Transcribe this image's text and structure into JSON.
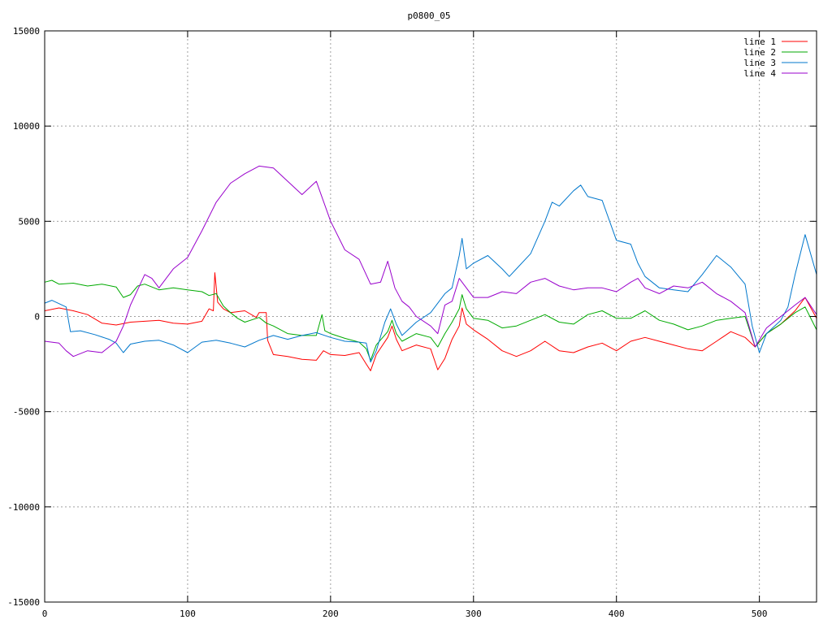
{
  "chart_data": {
    "type": "line",
    "title": "p0800_05",
    "xlabel": "",
    "ylabel": "",
    "xlim": [
      0,
      540
    ],
    "ylim": [
      -15000,
      15000
    ],
    "x_ticks": [
      0,
      100,
      200,
      300,
      400,
      500
    ],
    "y_ticks": [
      -15000,
      -10000,
      -5000,
      0,
      5000,
      10000,
      15000
    ],
    "grid": true,
    "legend_position": "top-right",
    "series": [
      {
        "name": "line 1",
        "color": "#ff0000",
        "points": [
          [
            0,
            300
          ],
          [
            10,
            450
          ],
          [
            20,
            300
          ],
          [
            30,
            100
          ],
          [
            40,
            -350
          ],
          [
            50,
            -450
          ],
          [
            60,
            -300
          ],
          [
            70,
            -250
          ],
          [
            80,
            -200
          ],
          [
            90,
            -350
          ],
          [
            100,
            -400
          ],
          [
            110,
            -250
          ],
          [
            115,
            400
          ],
          [
            118,
            300
          ],
          [
            119,
            2300
          ],
          [
            121,
            750
          ],
          [
            125,
            400
          ],
          [
            130,
            200
          ],
          [
            140,
            300
          ],
          [
            148,
            -50
          ],
          [
            150,
            200
          ],
          [
            155,
            200
          ],
          [
            156,
            -1250
          ],
          [
            160,
            -2000
          ],
          [
            170,
            -2100
          ],
          [
            180,
            -2250
          ],
          [
            190,
            -2300
          ],
          [
            195,
            -1800
          ],
          [
            200,
            -2000
          ],
          [
            210,
            -2050
          ],
          [
            220,
            -1900
          ],
          [
            225,
            -2500
          ],
          [
            228,
            -2850
          ],
          [
            232,
            -2000
          ],
          [
            240,
            -1100
          ],
          [
            243,
            -500
          ],
          [
            246,
            -1200
          ],
          [
            250,
            -1800
          ],
          [
            260,
            -1500
          ],
          [
            270,
            -1700
          ],
          [
            275,
            -2800
          ],
          [
            280,
            -2200
          ],
          [
            285,
            -1200
          ],
          [
            290,
            -500
          ],
          [
            292,
            450
          ],
          [
            295,
            -400
          ],
          [
            300,
            -700
          ],
          [
            310,
            -1200
          ],
          [
            320,
            -1800
          ],
          [
            330,
            -2100
          ],
          [
            340,
            -1800
          ],
          [
            350,
            -1300
          ],
          [
            360,
            -1800
          ],
          [
            370,
            -1900
          ],
          [
            380,
            -1600
          ],
          [
            390,
            -1400
          ],
          [
            400,
            -1800
          ],
          [
            410,
            -1300
          ],
          [
            420,
            -1100
          ],
          [
            430,
            -1300
          ],
          [
            440,
            -1500
          ],
          [
            450,
            -1700
          ],
          [
            460,
            -1800
          ],
          [
            470,
            -1300
          ],
          [
            480,
            -800
          ],
          [
            490,
            -1100
          ],
          [
            497,
            -1600
          ],
          [
            505,
            -900
          ],
          [
            515,
            -400
          ],
          [
            525,
            300
          ],
          [
            532,
            1000
          ],
          [
            540,
            -100
          ]
        ]
      },
      {
        "name": "line 2",
        "color": "#00aa00",
        "points": [
          [
            0,
            1800
          ],
          [
            5,
            1900
          ],
          [
            10,
            1700
          ],
          [
            20,
            1750
          ],
          [
            30,
            1600
          ],
          [
            40,
            1700
          ],
          [
            50,
            1550
          ],
          [
            55,
            1000
          ],
          [
            60,
            1150
          ],
          [
            65,
            1600
          ],
          [
            70,
            1700
          ],
          [
            80,
            1400
          ],
          [
            90,
            1500
          ],
          [
            100,
            1400
          ],
          [
            110,
            1300
          ],
          [
            115,
            1100
          ],
          [
            120,
            1200
          ],
          [
            125,
            550
          ],
          [
            130,
            200
          ],
          [
            135,
            -100
          ],
          [
            140,
            -300
          ],
          [
            150,
            -50
          ],
          [
            155,
            -350
          ],
          [
            160,
            -500
          ],
          [
            170,
            -900
          ],
          [
            180,
            -1000
          ],
          [
            190,
            -1000
          ],
          [
            194,
            100
          ],
          [
            196,
            -750
          ],
          [
            200,
            -900
          ],
          [
            210,
            -1150
          ],
          [
            220,
            -1350
          ],
          [
            225,
            -1700
          ],
          [
            228,
            -2300
          ],
          [
            232,
            -1500
          ],
          [
            240,
            -800
          ],
          [
            243,
            -200
          ],
          [
            246,
            -900
          ],
          [
            250,
            -1300
          ],
          [
            260,
            -900
          ],
          [
            270,
            -1100
          ],
          [
            275,
            -1600
          ],
          [
            280,
            -900
          ],
          [
            285,
            -300
          ],
          [
            290,
            400
          ],
          [
            292,
            1150
          ],
          [
            295,
            400
          ],
          [
            300,
            -100
          ],
          [
            310,
            -200
          ],
          [
            320,
            -600
          ],
          [
            330,
            -500
          ],
          [
            340,
            -200
          ],
          [
            350,
            100
          ],
          [
            360,
            -300
          ],
          [
            370,
            -400
          ],
          [
            380,
            100
          ],
          [
            390,
            300
          ],
          [
            400,
            -100
          ],
          [
            410,
            -100
          ],
          [
            420,
            300
          ],
          [
            430,
            -200
          ],
          [
            440,
            -400
          ],
          [
            450,
            -700
          ],
          [
            460,
            -500
          ],
          [
            470,
            -200
          ],
          [
            480,
            -100
          ],
          [
            490,
            0
          ],
          [
            497,
            -1600
          ],
          [
            505,
            -900
          ],
          [
            515,
            -400
          ],
          [
            525,
            200
          ],
          [
            532,
            500
          ],
          [
            540,
            -700
          ]
        ]
      },
      {
        "name": "line 3",
        "color": "#0077cc",
        "points": [
          [
            0,
            700
          ],
          [
            5,
            850
          ],
          [
            15,
            500
          ],
          [
            18,
            -800
          ],
          [
            25,
            -750
          ],
          [
            35,
            -950
          ],
          [
            45,
            -1200
          ],
          [
            50,
            -1400
          ],
          [
            55,
            -1900
          ],
          [
            60,
            -1450
          ],
          [
            70,
            -1300
          ],
          [
            80,
            -1250
          ],
          [
            90,
            -1500
          ],
          [
            100,
            -1900
          ],
          [
            110,
            -1350
          ],
          [
            120,
            -1250
          ],
          [
            130,
            -1400
          ],
          [
            140,
            -1600
          ],
          [
            150,
            -1250
          ],
          [
            160,
            -1000
          ],
          [
            170,
            -1200
          ],
          [
            180,
            -1000
          ],
          [
            190,
            -850
          ],
          [
            200,
            -1100
          ],
          [
            210,
            -1300
          ],
          [
            220,
            -1350
          ],
          [
            225,
            -1400
          ],
          [
            228,
            -2400
          ],
          [
            232,
            -1800
          ],
          [
            238,
            -300
          ],
          [
            242,
            400
          ],
          [
            246,
            -400
          ],
          [
            250,
            -1000
          ],
          [
            260,
            -300
          ],
          [
            270,
            200
          ],
          [
            280,
            1200
          ],
          [
            285,
            1500
          ],
          [
            290,
            3200
          ],
          [
            292,
            4100
          ],
          [
            295,
            2500
          ],
          [
            300,
            2800
          ],
          [
            310,
            3200
          ],
          [
            320,
            2500
          ],
          [
            325,
            2100
          ],
          [
            330,
            2500
          ],
          [
            340,
            3300
          ],
          [
            350,
            5000
          ],
          [
            355,
            6000
          ],
          [
            360,
            5800
          ],
          [
            370,
            6600
          ],
          [
            375,
            6900
          ],
          [
            380,
            6300
          ],
          [
            390,
            6100
          ],
          [
            400,
            4000
          ],
          [
            410,
            3800
          ],
          [
            415,
            2800
          ],
          [
            420,
            2100
          ],
          [
            430,
            1500
          ],
          [
            440,
            1400
          ],
          [
            450,
            1300
          ],
          [
            460,
            2200
          ],
          [
            470,
            3200
          ],
          [
            480,
            2600
          ],
          [
            490,
            1700
          ],
          [
            495,
            -500
          ],
          [
            500,
            -1900
          ],
          [
            505,
            -900
          ],
          [
            515,
            -200
          ],
          [
            520,
            500
          ],
          [
            525,
            2200
          ],
          [
            530,
            3700
          ],
          [
            532,
            4300
          ],
          [
            540,
            2200
          ]
        ]
      },
      {
        "name": "line 4",
        "color": "#9900cc",
        "points": [
          [
            0,
            -1300
          ],
          [
            10,
            -1400
          ],
          [
            15,
            -1800
          ],
          [
            20,
            -2100
          ],
          [
            30,
            -1800
          ],
          [
            40,
            -1900
          ],
          [
            50,
            -1300
          ],
          [
            55,
            -500
          ],
          [
            60,
            600
          ],
          [
            65,
            1400
          ],
          [
            70,
            2200
          ],
          [
            75,
            2000
          ],
          [
            80,
            1500
          ],
          [
            90,
            2500
          ],
          [
            100,
            3100
          ],
          [
            110,
            4500
          ],
          [
            120,
            6000
          ],
          [
            130,
            7000
          ],
          [
            140,
            7500
          ],
          [
            150,
            7900
          ],
          [
            160,
            7800
          ],
          [
            170,
            7100
          ],
          [
            180,
            6400
          ],
          [
            190,
            7100
          ],
          [
            200,
            5000
          ],
          [
            210,
            3500
          ],
          [
            220,
            3000
          ],
          [
            228,
            1700
          ],
          [
            235,
            1800
          ],
          [
            240,
            2900
          ],
          [
            245,
            1500
          ],
          [
            250,
            800
          ],
          [
            255,
            500
          ],
          [
            260,
            0
          ],
          [
            270,
            -500
          ],
          [
            275,
            -900
          ],
          [
            280,
            600
          ],
          [
            285,
            800
          ],
          [
            290,
            2000
          ],
          [
            292,
            1800
          ],
          [
            300,
            1000
          ],
          [
            310,
            1000
          ],
          [
            320,
            1300
          ],
          [
            330,
            1200
          ],
          [
            340,
            1800
          ],
          [
            350,
            2000
          ],
          [
            360,
            1600
          ],
          [
            370,
            1400
          ],
          [
            380,
            1500
          ],
          [
            390,
            1500
          ],
          [
            400,
            1300
          ],
          [
            410,
            1800
          ],
          [
            415,
            2000
          ],
          [
            420,
            1500
          ],
          [
            430,
            1200
          ],
          [
            440,
            1600
          ],
          [
            450,
            1500
          ],
          [
            460,
            1800
          ],
          [
            470,
            1200
          ],
          [
            480,
            800
          ],
          [
            490,
            200
          ],
          [
            497,
            -1600
          ],
          [
            505,
            -600
          ],
          [
            515,
            0
          ],
          [
            525,
            600
          ],
          [
            532,
            1000
          ],
          [
            540,
            100
          ]
        ]
      }
    ]
  }
}
